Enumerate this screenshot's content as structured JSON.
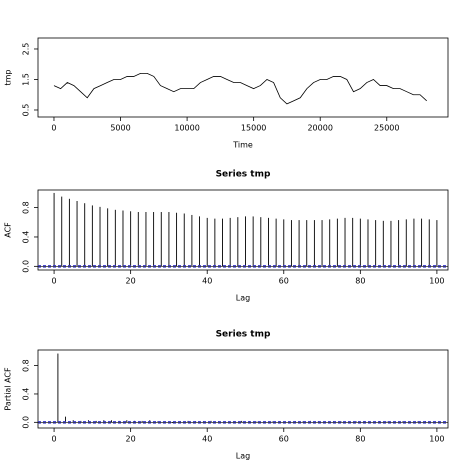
{
  "chart_data": [
    {
      "type": "line",
      "xlabel": "Time",
      "ylabel": "tmp",
      "x": [
        0,
        500,
        1000,
        1500,
        2000,
        2500,
        3000,
        3500,
        4000,
        4500,
        5000,
        5500,
        6000,
        6500,
        7000,
        7500,
        8000,
        8500,
        9000,
        9500,
        10000,
        10500,
        11000,
        11500,
        12000,
        12500,
        13000,
        13500,
        14000,
        14500,
        15000,
        15500,
        16000,
        16500,
        17000,
        17500,
        18000,
        18500,
        19000,
        19500,
        20000,
        20500,
        21000,
        21500,
        22000,
        22500,
        23000,
        23500,
        24000,
        24500,
        25000,
        25500,
        26000,
        26500,
        27000,
        27500,
        28000
      ],
      "series": [
        {
          "color": "#000000",
          "values": [
            1.3,
            1.2,
            1.4,
            1.3,
            1.1,
            0.9,
            1.2,
            1.3,
            1.4,
            1.5,
            1.5,
            1.6,
            1.6,
            1.7,
            1.7,
            1.6,
            1.3,
            1.2,
            1.1,
            1.2,
            1.2,
            1.2,
            1.4,
            1.5,
            1.6,
            1.6,
            1.5,
            1.4,
            1.4,
            1.3,
            1.2,
            1.3,
            1.5,
            1.4,
            0.9,
            0.7,
            0.8,
            0.9,
            1.2,
            1.4,
            1.5,
            1.5,
            1.6,
            1.6,
            1.5,
            1.1,
            1.2,
            1.4,
            1.5,
            1.3,
            1.3,
            1.2,
            1.2,
            1.1,
            1.0,
            1.0,
            0.8
          ]
        }
      ],
      "xlim": [
        -1200,
        29600
      ],
      "ylim": [
        0.27,
        2.86
      ],
      "xticks": [
        0,
        5000,
        10000,
        15000,
        20000,
        25000
      ],
      "yticks": [
        0.5,
        1.5,
        2.5
      ]
    },
    {
      "type": "bar",
      "title": "Series  tmp",
      "xlabel": "Lag",
      "ylabel": "ACF",
      "x": [
        0,
        2,
        4,
        6,
        8,
        10,
        12,
        14,
        16,
        18,
        20,
        22,
        24,
        26,
        28,
        30,
        32,
        34,
        36,
        38,
        40,
        42,
        44,
        46,
        48,
        50,
        52,
        54,
        56,
        58,
        60,
        62,
        64,
        66,
        68,
        70,
        72,
        74,
        76,
        78,
        80,
        82,
        84,
        86,
        88,
        90,
        92,
        94,
        96,
        98,
        100
      ],
      "values": [
        1.0,
        0.95,
        0.92,
        0.89,
        0.86,
        0.83,
        0.81,
        0.79,
        0.77,
        0.76,
        0.75,
        0.74,
        0.74,
        0.74,
        0.74,
        0.74,
        0.73,
        0.72,
        0.7,
        0.68,
        0.66,
        0.65,
        0.65,
        0.66,
        0.67,
        0.68,
        0.68,
        0.67,
        0.66,
        0.65,
        0.64,
        0.63,
        0.63,
        0.63,
        0.63,
        0.63,
        0.64,
        0.65,
        0.66,
        0.66,
        0.65,
        0.64,
        0.63,
        0.62,
        0.62,
        0.63,
        0.64,
        0.65,
        0.65,
        0.64,
        0.63
      ],
      "color": "#000000",
      "ci": [
        0.012,
        -0.012
      ],
      "ci_color": "#3333cc",
      "xlim": [
        -4.2,
        102.9
      ],
      "ylim": [
        -0.05,
        1.04
      ],
      "xticks": [
        0,
        20,
        40,
        60,
        80,
        100
      ],
      "yticks": [
        {
          "value": 0,
          "label": "0.0"
        },
        0.4,
        0.8
      ]
    },
    {
      "type": "bar",
      "title": "Series  tmp",
      "xlabel": "Lag",
      "ylabel": "Partial ACF",
      "x": [
        1,
        3,
        5,
        7,
        9,
        11,
        13,
        15,
        17,
        19,
        21,
        23,
        25,
        27,
        29,
        31,
        33,
        35,
        37,
        39,
        41,
        43,
        45,
        47,
        49,
        51,
        53,
        55,
        57,
        59,
        61,
        63,
        65,
        67,
        69,
        71,
        73,
        75,
        77,
        79,
        81,
        83,
        85,
        87,
        89,
        91,
        93,
        95,
        97,
        99
      ],
      "values": [
        0.97,
        0.08,
        0.03,
        0.02,
        0.03,
        0.02,
        0.03,
        0.03,
        0.02,
        0.03,
        0.02,
        0.02,
        0.03,
        0.01,
        0.0,
        -0.01,
        0.01,
        0.02,
        0.01,
        0.01,
        0.02,
        0.01,
        0.0,
        0.01,
        0.02,
        0.01,
        0.01,
        0.0,
        0.01,
        0.01,
        0.0,
        0.01,
        0.01,
        0.02,
        0.01,
        0.0,
        0.01,
        0.01,
        0.0,
        0.01,
        0.01,
        0.0,
        0.01,
        0.01,
        0.0,
        0.01,
        0.0,
        0.01,
        0.01,
        0.0
      ],
      "color": "#000000",
      "ci": [
        0.012,
        -0.012
      ],
      "ci_color": "#3333cc",
      "xlim": [
        -4.2,
        102.9
      ],
      "ylim": [
        -0.08,
        1.02
      ],
      "xticks": [
        0,
        20,
        40,
        60,
        80,
        100
      ],
      "yticks": [
        {
          "value": 0,
          "label": "0.0"
        },
        0.4,
        0.8
      ]
    }
  ]
}
